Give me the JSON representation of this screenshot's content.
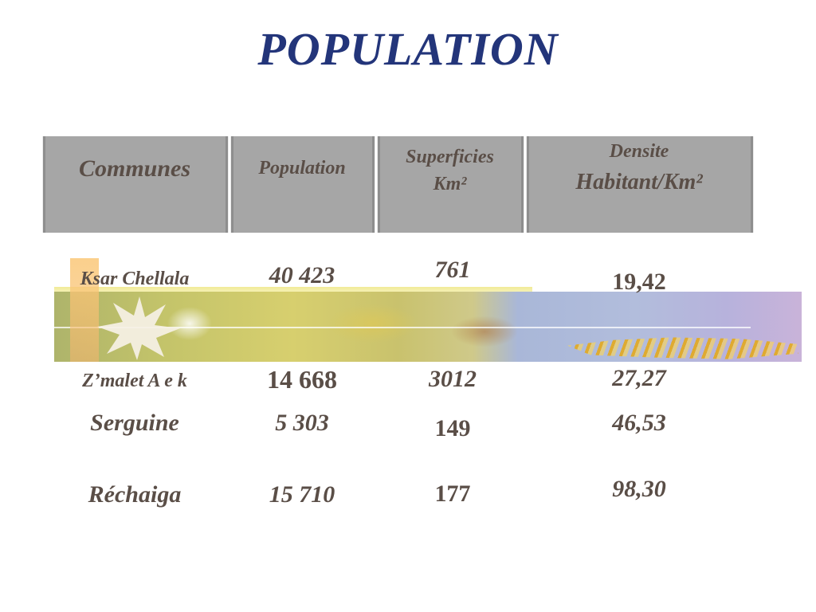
{
  "slide": {
    "title": "POPULATION"
  },
  "table": {
    "headers": {
      "communes": "Communes",
      "population": "Population",
      "superficies_line1": "Superficies",
      "superficies_line2": "Km²",
      "densite_line1": "Densite",
      "densite_line2": "Habitant/Km²"
    },
    "rows": [
      {
        "commune": "Ksar Chellala",
        "population": "40 423",
        "superficie": "761",
        "densite": "19,42"
      },
      {
        "commune": "Z’malet A e k",
        "population": "14 668",
        "superficie": "3012",
        "densite": "27,27"
      },
      {
        "commune": "Serguine",
        "population": "5 303",
        "superficie": "149",
        "densite": "46,53"
      },
      {
        "commune": "Réchaiga",
        "population": "15 710",
        "superficie": "177",
        "densite": "98,30"
      }
    ]
  },
  "colors": {
    "title": "#23357a",
    "text": "#5a4e47",
    "header_bg": "#a6a6a6"
  }
}
